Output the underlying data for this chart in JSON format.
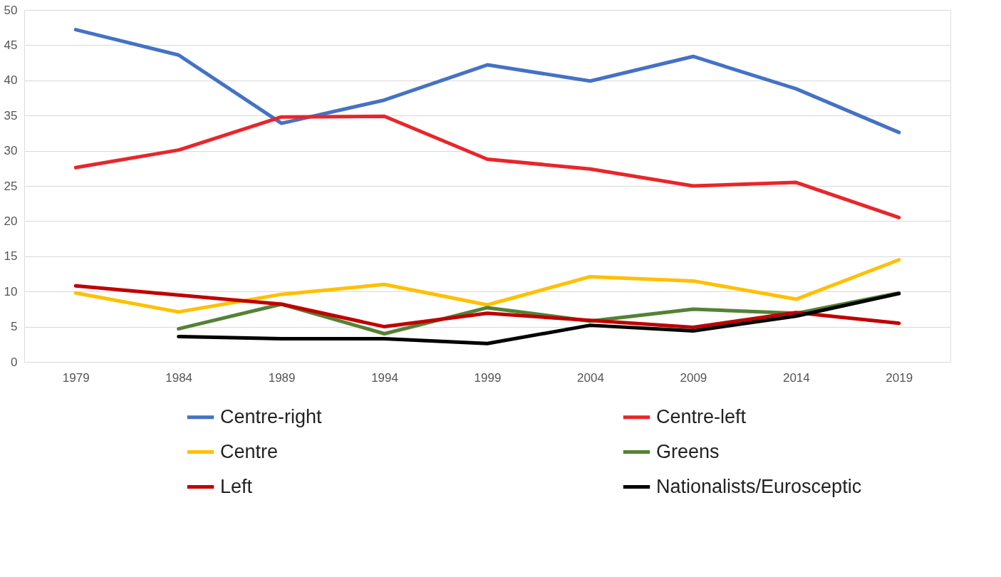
{
  "chart_data": {
    "type": "line",
    "categories": [
      "1979",
      "1984",
      "1989",
      "1994",
      "1999",
      "2004",
      "2009",
      "2014",
      "2019"
    ],
    "series": [
      {
        "name": "Centre-right",
        "color": "#4472c4",
        "values": [
          47.2,
          43.6,
          33.9,
          37.2,
          42.2,
          39.9,
          43.4,
          38.8,
          32.6
        ]
      },
      {
        "name": "Centre-left",
        "color": "#e8262a",
        "values": [
          27.6,
          30.1,
          34.8,
          34.9,
          28.8,
          27.4,
          25.0,
          25.5,
          20.5
        ]
      },
      {
        "name": "Centre",
        "color": "#ffc000",
        "values": [
          9.8,
          7.1,
          9.6,
          11.0,
          8.1,
          12.1,
          11.5,
          8.9,
          14.5
        ]
      },
      {
        "name": "Greens",
        "color": "#548235",
        "values": [
          null,
          4.7,
          8.2,
          4.0,
          7.7,
          5.8,
          7.5,
          6.9,
          9.8
        ]
      },
      {
        "name": "Left",
        "color": "#c00000",
        "values": [
          10.8,
          9.5,
          8.2,
          5.0,
          6.9,
          5.9,
          4.9,
          7.0,
          5.5
        ]
      },
      {
        "name": "Nationalists/Eurosceptic",
        "color": "#000000",
        "values": [
          null,
          3.6,
          3.3,
          3.3,
          2.6,
          5.2,
          4.4,
          6.5,
          9.7
        ]
      }
    ],
    "ylim": [
      0,
      50
    ],
    "yticks": [
      0,
      5,
      10,
      15,
      20,
      25,
      30,
      35,
      40,
      45,
      50
    ],
    "grid": "y",
    "legend": "bottom",
    "marker": "none",
    "line_style": "solid"
  }
}
